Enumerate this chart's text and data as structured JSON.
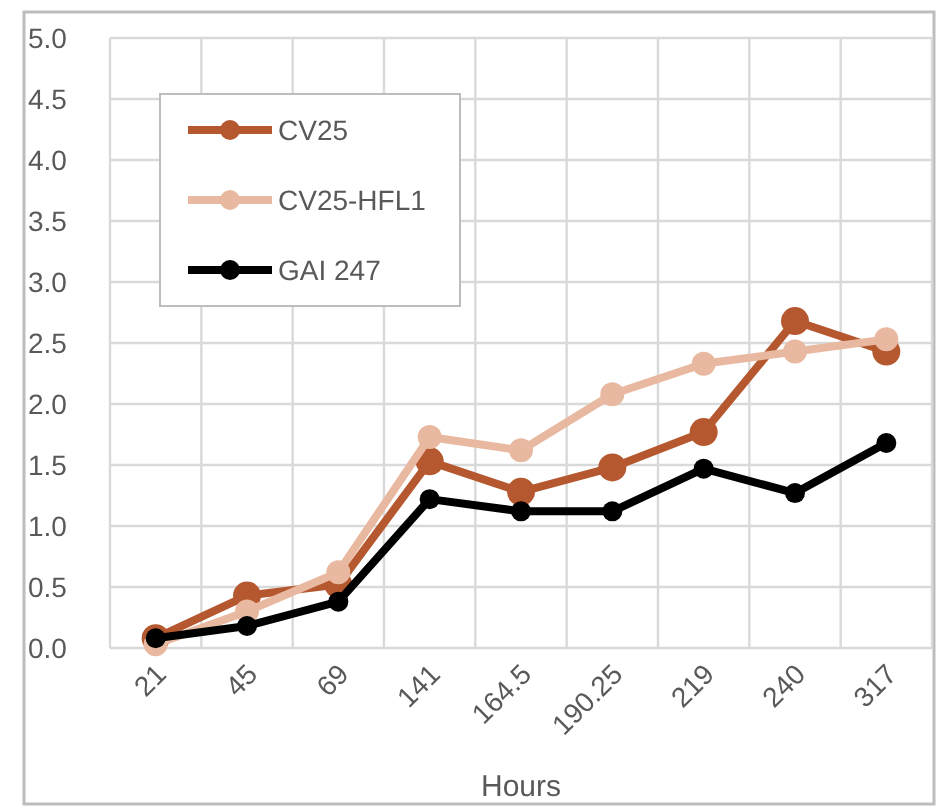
{
  "chart_data": {
    "type": "line",
    "xlabel": "Hours",
    "categories": [
      "21",
      "45",
      "69",
      "141",
      "164.5",
      "190.25",
      "219",
      "240",
      "317"
    ],
    "series": [
      {
        "name": "CV25",
        "color": "#b5582f",
        "values": [
          0.08,
          0.43,
          0.52,
          1.53,
          1.28,
          1.48,
          1.77,
          2.68,
          2.43
        ]
      },
      {
        "name": "CV25-HFL1",
        "color": "#e8b9a0",
        "values": [
          0.03,
          0.3,
          0.62,
          1.73,
          1.62,
          2.08,
          2.33,
          2.43,
          2.53
        ]
      },
      {
        "name": "GAI 247",
        "color": "#000000",
        "values": [
          0.08,
          0.18,
          0.38,
          1.22,
          1.12,
          1.12,
          1.47,
          1.27,
          1.68
        ]
      }
    ],
    "ylim": [
      0,
      5
    ],
    "yticks": [
      {
        "value": 0,
        "label": "0.0"
      },
      {
        "value": 0.5,
        "label": "0.5"
      },
      {
        "value": 1,
        "label": "1.0"
      },
      {
        "value": 1.5,
        "label": "1.5"
      },
      {
        "value": 2,
        "label": "2.0"
      },
      {
        "value": 2.5,
        "label": "2.5"
      },
      {
        "value": 3,
        "label": "3.0"
      },
      {
        "value": 3.5,
        "label": "3.5"
      },
      {
        "value": 4,
        "label": "4.0"
      },
      {
        "value": 4.5,
        "label": "4.5"
      },
      {
        "value": 5,
        "label": "5.0"
      }
    ],
    "grid": true,
    "legend": "top left",
    "marker": "circle",
    "line_style": "solid"
  }
}
